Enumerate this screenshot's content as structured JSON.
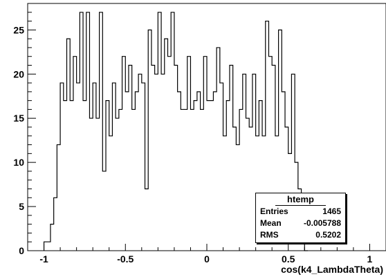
{
  "chart_data": {
    "type": "histogram",
    "name": "htemp",
    "xlabel": "cos(k4_LambdaTheta)",
    "ylabel": "",
    "xlim": [
      -1.1,
      1.1
    ],
    "ylim": [
      0,
      28
    ],
    "xticks": [
      "-1",
      "-0.5",
      "0",
      "0.5",
      "1"
    ],
    "yticks": [
      "0",
      "5",
      "10",
      "15",
      "20",
      "25"
    ],
    "bin_width": 0.02,
    "bins_start": -1.0,
    "values": [
      1,
      1,
      3,
      6,
      12,
      19,
      17,
      24,
      17,
      22,
      19,
      27,
      17,
      27,
      15,
      19,
      15,
      27,
      9,
      17,
      13,
      19,
      15,
      16,
      22,
      18,
      21,
      16,
      18,
      20,
      19,
      7,
      25,
      21,
      20,
      27,
      20,
      24,
      22,
      27,
      21,
      18,
      16,
      16,
      22,
      16,
      17,
      18,
      16,
      22,
      17,
      17,
      18,
      23,
      19,
      13,
      17,
      21,
      14,
      12,
      16,
      20,
      15,
      14,
      20,
      13,
      17,
      13,
      26,
      22,
      21,
      13,
      25,
      18,
      14,
      11,
      20,
      10,
      7,
      1,
      0
    ],
    "line_color": "#000000",
    "stats": {
      "title": "htemp",
      "rows": [
        {
          "label": "Entries",
          "value": "1465"
        },
        {
          "label": "Mean",
          "value": "-0.005788"
        },
        {
          "label": "RMS",
          "value": "0.5202"
        }
      ]
    }
  }
}
